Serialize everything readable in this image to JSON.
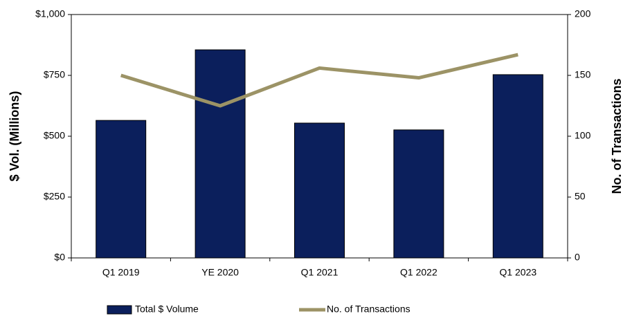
{
  "chart_data": {
    "type": "bar",
    "categories": [
      "Q1 2019",
      "YE 2020",
      "Q1 2021",
      "Q1 2022",
      "Q1 2023"
    ],
    "series": [
      {
        "name": "Total $ Volume",
        "type": "bar",
        "color": "#0b1f5c",
        "values": [
          565,
          855,
          554,
          526,
          753
        ]
      },
      {
        "name": "No. of Transactions",
        "type": "line",
        "axis": "y2",
        "color": "#9c9366",
        "values": [
          150,
          125,
          156,
          148,
          167
        ]
      }
    ],
    "ylabel": "$ Vol. (Millions)",
    "y2label": "No. of Transactions",
    "ylim": [
      0,
      1000
    ],
    "yticks": [
      {
        "value": 0,
        "label": "$0"
      },
      {
        "value": 250,
        "label": "$250"
      },
      {
        "value": 500,
        "label": "$500"
      },
      {
        "value": 750,
        "label": "$750"
      },
      {
        "value": 1000,
        "label": "$1,000"
      }
    ],
    "y2lim": [
      0,
      200
    ],
    "y2ticks": [
      0,
      50,
      100,
      150,
      200
    ],
    "legend": "bottom"
  }
}
